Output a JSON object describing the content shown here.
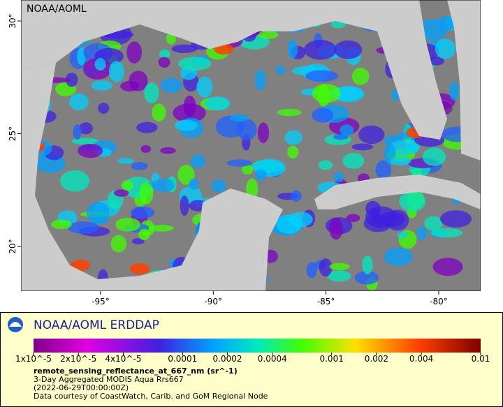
{
  "map": {
    "label": "NOAA/AOML",
    "lon_range": [
      -98.53,
      -78.14
    ],
    "lat_range": [
      18.02,
      30.93
    ],
    "lon_ticks": [
      {
        "value": -95,
        "label": "-95°"
      },
      {
        "value": -90,
        "label": "-90°"
      },
      {
        "value": -85,
        "label": "-85°"
      },
      {
        "value": -80,
        "label": "-80°"
      }
    ],
    "lat_ticks": [
      {
        "value": 20,
        "label": "20°"
      },
      {
        "value": 25,
        "label": "25°"
      },
      {
        "value": 30,
        "label": "30°"
      }
    ]
  },
  "legend": {
    "title": "NOAA/AOML ERDDAP",
    "colorbar": {
      "range": [
        1e-05,
        0.01
      ],
      "log": true,
      "ticks": [
        {
          "value": 1e-05,
          "label": "1x10^-5"
        },
        {
          "value": 2e-05,
          "label": "2x10^-5"
        },
        {
          "value": 4e-05,
          "label": "4x10^-5"
        },
        {
          "value": 0.0001,
          "label": "0.0001"
        },
        {
          "value": 0.0002,
          "label": "0.0002"
        },
        {
          "value": 0.0004,
          "label": "0.0004"
        },
        {
          "value": 0.001,
          "label": "0.001"
        },
        {
          "value": 0.002,
          "label": "0.002"
        },
        {
          "value": 0.004,
          "label": "0.004"
        },
        {
          "value": 0.01,
          "label": "0.01"
        }
      ]
    },
    "variable": "remote_sensing_reflectance_at_667_nm (sr^-1)",
    "dataset": "3-Day Aggregated MODIS Aqua Rrs667",
    "time": "(2022-06-29T00:00:00Z)",
    "credit": "Data courtesy of CoastWatch, Carib. and GoM Regional Node"
  }
}
